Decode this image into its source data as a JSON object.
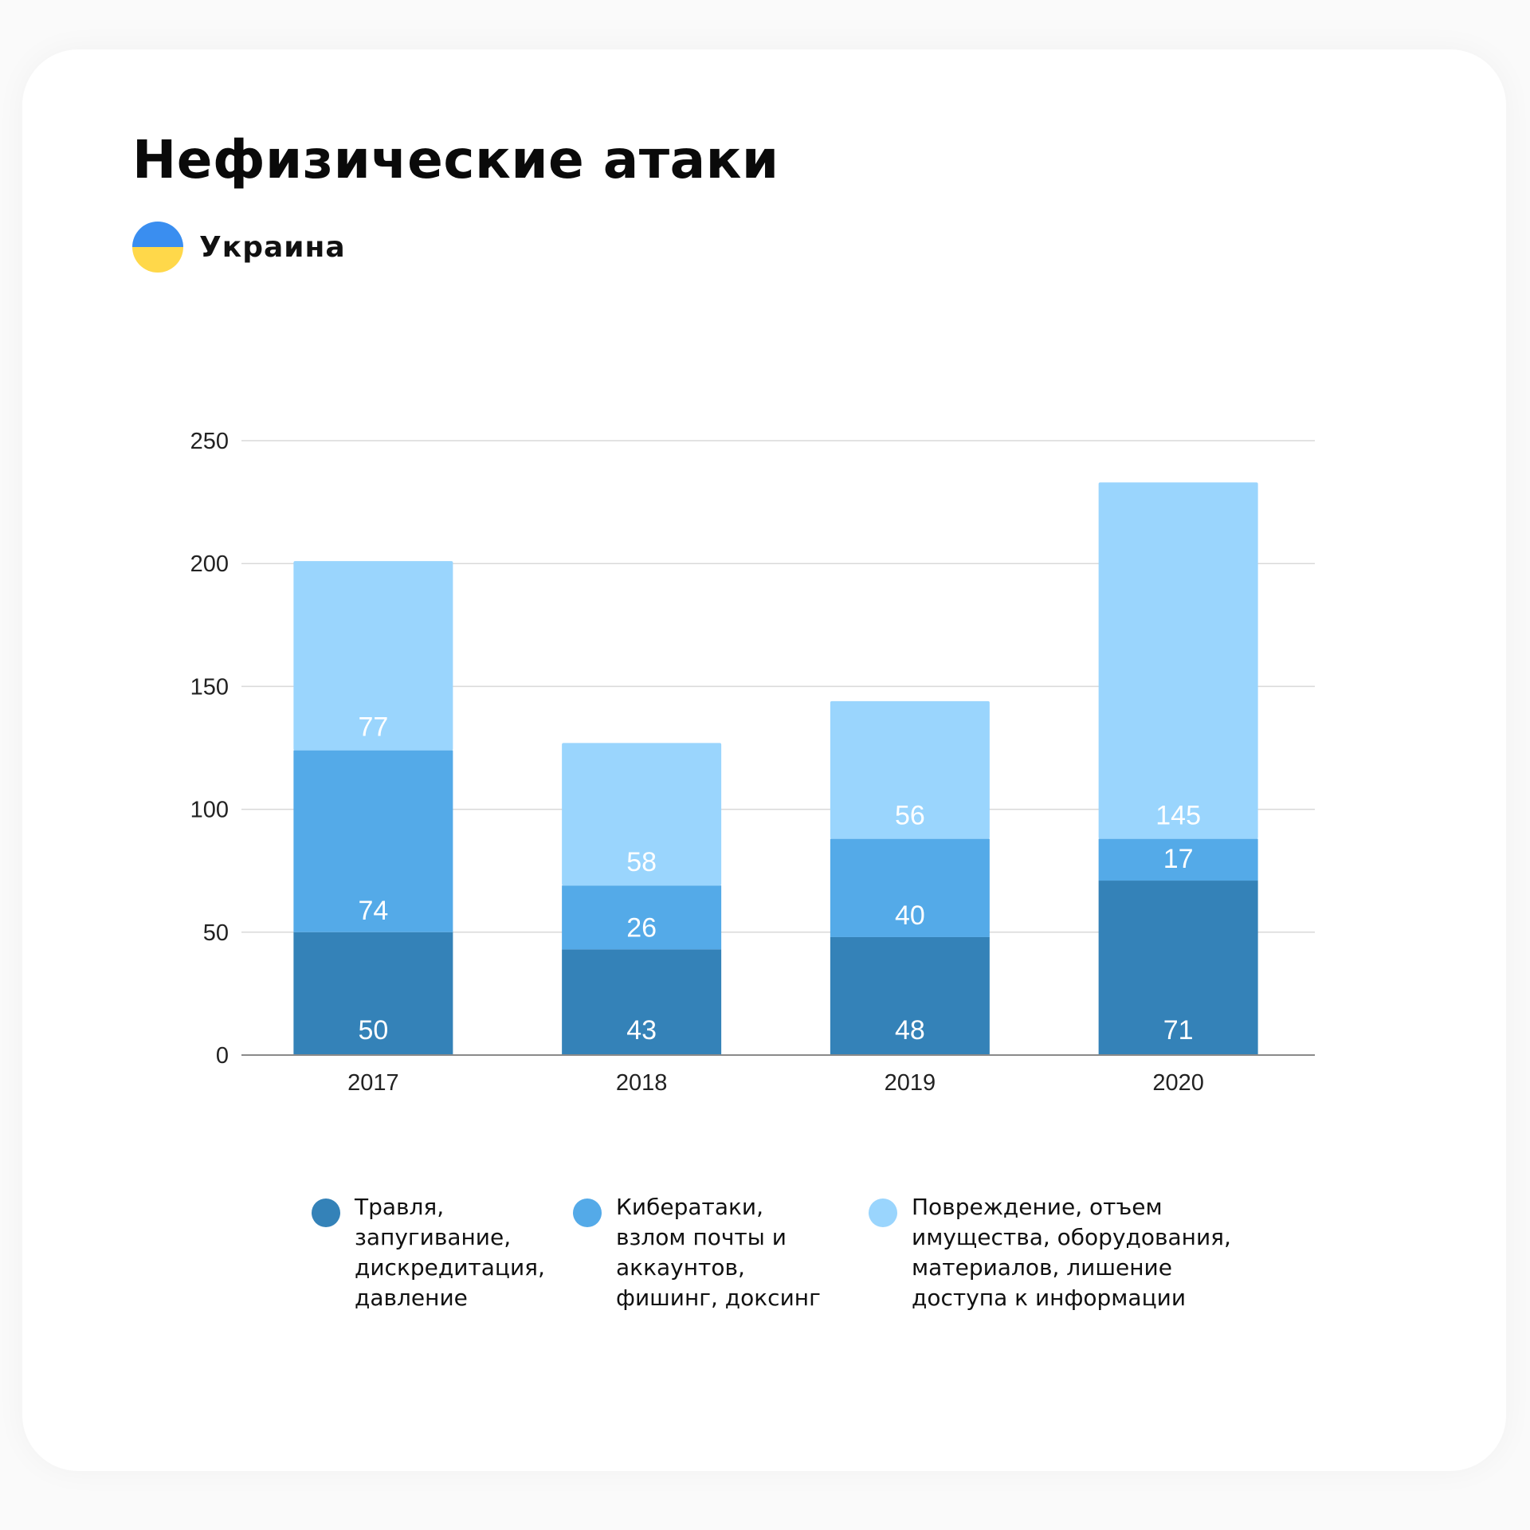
{
  "header": {
    "title": "Нефизические атаки",
    "country": "Украина",
    "flag_icon": "ukraine-flag-icon",
    "flag_colors": [
      "#3a8ef0",
      "#ffd84a"
    ]
  },
  "chart_data": {
    "type": "bar",
    "stacked": true,
    "title": "Нефизические атаки",
    "xlabel": "",
    "ylabel": "",
    "categories": [
      "2017",
      "2018",
      "2019",
      "2020"
    ],
    "ylim": [
      0,
      250
    ],
    "yticks": [
      0,
      50,
      100,
      150,
      200,
      250
    ],
    "grid": true,
    "legend_position": "bottom",
    "series": [
      {
        "name": "Травля, запугивание, дискредитация, давление",
        "values": [
          50,
          43,
          48,
          71
        ],
        "color": "#3482b8"
      },
      {
        "name": "Кибератаки, взлом почты и аккаунтов, фишинг, доксинг",
        "values": [
          74,
          26,
          40,
          17
        ],
        "color": "#54aae8"
      },
      {
        "name": "Повреждение, отъем имущества, оборудования, материалов, лишение доступа к информации",
        "values": [
          77,
          58,
          56,
          145
        ],
        "color": "#9ad5fd"
      }
    ]
  },
  "legend": {
    "items": [
      {
        "lines": [
          "Травля,",
          "запугивание,",
          "дискредитация,",
          "давление"
        ],
        "color": "#3482b8"
      },
      {
        "lines": [
          "Кибератаки,",
          "взлом почты и",
          "аккаунтов,",
          "фишинг, доксинг"
        ],
        "color": "#54aae8"
      },
      {
        "lines": [
          "Повреждение, отъем",
          "имущества, оборудования,",
          "материалов, лишение",
          "доступа к информации"
        ],
        "color": "#9ad5fd"
      }
    ]
  }
}
